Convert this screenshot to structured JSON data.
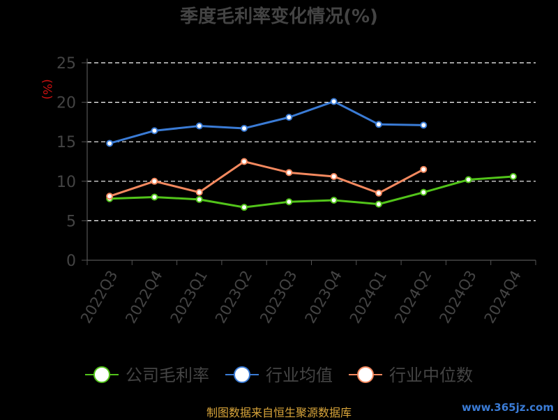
{
  "chart_data": {
    "type": "line",
    "title": "季度毛利率变化情况(%)",
    "ylabel": "(%)",
    "ylim": [
      0,
      25
    ],
    "yticks": [
      0,
      5,
      10,
      15,
      20,
      25
    ],
    "grid": true,
    "legend": "bottom-center",
    "categories": [
      "2022Q3",
      "2022Q4",
      "2023Q1",
      "2023Q2",
      "2023Q3",
      "2023Q4",
      "2024Q1",
      "2024Q2",
      "2024Q3",
      "2024Q4"
    ],
    "series": [
      {
        "name": "公司毛利率",
        "color": "#52c41a",
        "values": [
          7.8,
          8.0,
          7.7,
          6.7,
          7.4,
          7.6,
          7.1,
          8.6,
          10.2,
          10.6
        ]
      },
      {
        "name": "行业均值",
        "color": "#3a7bd5",
        "values": [
          14.8,
          16.4,
          17.0,
          16.7,
          18.1,
          20.1,
          17.2,
          17.1,
          null,
          null
        ]
      },
      {
        "name": "行业中位数",
        "color": "#f4895f",
        "values": [
          8.1,
          10.0,
          8.6,
          12.5,
          11.1,
          10.6,
          8.5,
          11.5,
          null,
          null
        ]
      }
    ]
  },
  "footer": "制图数据来自恒生聚源数据库",
  "watermark": "www.365jz.com"
}
